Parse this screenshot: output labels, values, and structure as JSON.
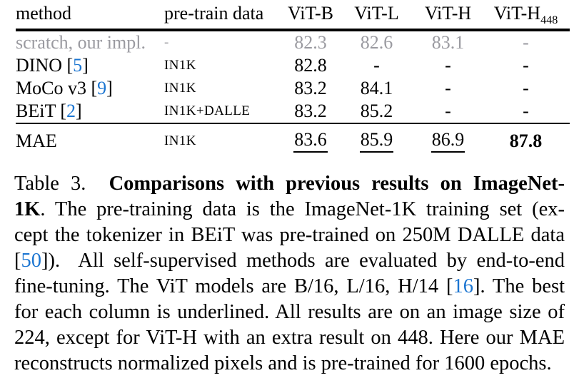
{
  "colors": {
    "cite_blue": "#1b75d1",
    "muted_gray": "#9a9aa0",
    "rule_black": "#000000"
  },
  "table": {
    "headers": [
      {
        "label": "method",
        "align": "left"
      },
      {
        "label": "pre-train data",
        "align": "left"
      },
      {
        "label": "ViT-B",
        "align": "center"
      },
      {
        "label": "ViT-L",
        "align": "center"
      },
      {
        "label": "ViT-H",
        "align": "center"
      },
      {
        "label": "ViT-H",
        "sub": "448",
        "align": "center"
      }
    ],
    "rows": [
      {
        "method": {
          "name": "scratch, our impl.",
          "cite": null
        },
        "pretrain": "-",
        "values": [
          {
            "text": "82.3"
          },
          {
            "text": "82.6"
          },
          {
            "text": "83.1"
          },
          {
            "text": "-"
          }
        ],
        "muted": true
      },
      {
        "method": {
          "name": "DINO",
          "cite": "5"
        },
        "pretrain": "IN1K",
        "values": [
          {
            "text": "82.8"
          },
          {
            "text": "-"
          },
          {
            "text": "-"
          },
          {
            "text": "-"
          }
        ]
      },
      {
        "method": {
          "name": "MoCo v3",
          "cite": "9"
        },
        "pretrain": "IN1K",
        "values": [
          {
            "text": "83.2"
          },
          {
            "text": "84.1"
          },
          {
            "text": "-"
          },
          {
            "text": "-"
          }
        ]
      },
      {
        "method": {
          "name": "BEiT",
          "cite": "2"
        },
        "pretrain": "IN1K+DALLE",
        "values": [
          {
            "text": "83.2"
          },
          {
            "text": "85.2"
          },
          {
            "text": "-"
          },
          {
            "text": "-"
          }
        ]
      },
      {
        "method": {
          "name": "MAE",
          "cite": null
        },
        "pretrain": "IN1K",
        "values": [
          {
            "text": "83.6",
            "underline": true
          },
          {
            "text": "85.9",
            "underline": true
          },
          {
            "text": "86.9",
            "underline": true
          },
          {
            "text": "87.8",
            "bold": true
          }
        ],
        "rule_above": true
      }
    ]
  },
  "caption": {
    "lines": [
      {
        "segments": [
          {
            "text": "Table 3.  "
          },
          {
            "text": "Comparisons with previous results on ImageNet-",
            "style": "bold"
          }
        ]
      },
      {
        "segments": [
          {
            "text": "1K",
            "style": "bold"
          },
          {
            "text": ". The pre-training data is the ImageNet-1K training set (ex-"
          }
        ]
      },
      {
        "segments": [
          {
            "text": "cept the tokenizer in BEiT was pre-trained on 250M DALLE data"
          }
        ]
      },
      {
        "segments": [
          {
            "text": "["
          },
          {
            "text": "50",
            "style": "cite"
          },
          {
            "text": "]).  All self-supervised methods are evaluated by end-to-end"
          }
        ]
      },
      {
        "segments": [
          {
            "text": "fine-tuning. The ViT models are B/16, L/16, H/14 ["
          },
          {
            "text": "16",
            "style": "cite"
          },
          {
            "text": "]. The best"
          }
        ]
      },
      {
        "segments": [
          {
            "text": "for each column is underlined. All results are on an image size of"
          }
        ]
      },
      {
        "segments": [
          {
            "text": "224, except for ViT-H with an extra result on 448. Here our MAE"
          }
        ]
      },
      {
        "last": true,
        "segments": [
          {
            "text": "reconstructs normalized pixels and is pre-trained for 1600 epochs."
          }
        ]
      }
    ]
  }
}
